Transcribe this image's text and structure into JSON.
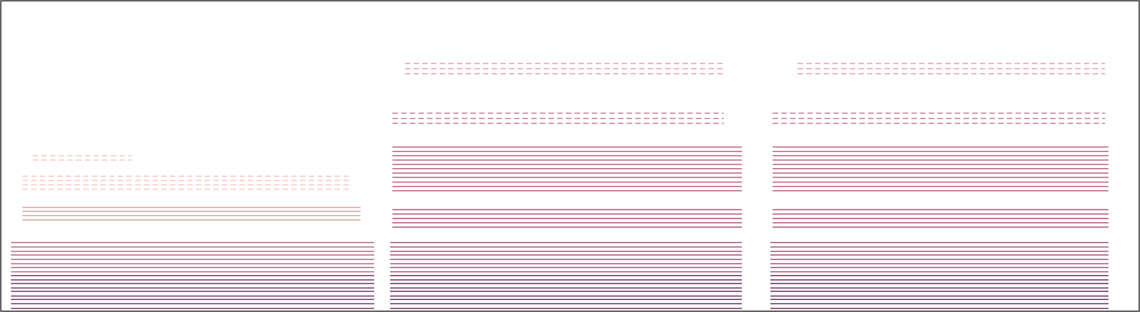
{
  "chart_data": {
    "type": "line",
    "xlim": [
      0,
      100
    ],
    "ylim": [
      0,
      100
    ],
    "tick_labels": false,
    "grid": false,
    "segments": [
      {
        "start": 0.9,
        "end": 32.8,
        "color": "#6b2a60",
        "line_style": "solid",
        "harmonics": [
          0.9,
          2.4,
          3.8,
          4.9,
          6.4,
          7.5,
          8.9,
          10.1,
          11.5
        ]
      },
      {
        "start": 0.9,
        "end": 32.8,
        "color": "#b0607e",
        "line_style": "solid",
        "harmonics": [
          12.7,
          14.1,
          15.3,
          16.7,
          18.1,
          19.3,
          20.7,
          22.1
        ]
      },
      {
        "start": 1.9,
        "end": 31.6,
        "color": "#dba092",
        "line_style": "solid",
        "harmonics": [
          29.4,
          30.8,
          32.2,
          33.4
        ]
      },
      {
        "start": 1.9,
        "end": 30.6,
        "color": "#efcabb",
        "line_style": "dashed",
        "harmonics": [
          39.3,
          40.7,
          42.1,
          43.5
        ]
      },
      {
        "start": 2.8,
        "end": 11.5,
        "color": "#efcabb",
        "line_style": "dashed",
        "harmonics": [
          48.7,
          50.1
        ]
      },
      {
        "start": 34.2,
        "end": 65.1,
        "color": "#5e2358",
        "line_style": "solid",
        "harmonics": [
          0.9,
          2.4,
          3.8,
          4.9,
          6.4,
          7.5,
          8.9,
          10.1,
          11.5
        ]
      },
      {
        "start": 34.2,
        "end": 65.1,
        "color": "#9c4a72",
        "line_style": "solid",
        "harmonics": [
          12.7,
          14.1,
          15.3,
          16.7,
          18.1,
          19.3,
          20.7,
          22.1
        ]
      },
      {
        "start": 34.4,
        "end": 65.1,
        "color": "#b04a6a",
        "line_style": "solid",
        "harmonics": [
          27.1,
          28.5,
          29.9,
          31.3,
          32.7
        ]
      },
      {
        "start": 34.4,
        "end": 65.1,
        "color": "#b65a78",
        "line_style": "solid",
        "harmonics": [
          38.8,
          40.2,
          41.6,
          43.1,
          44.5,
          45.9,
          47.3,
          48.7,
          50.1,
          51.5,
          52.9
        ]
      },
      {
        "start": 34.4,
        "end": 63.5,
        "color": "#c87890",
        "line_style": "dashed",
        "harmonics": [
          60.5,
          62.1,
          63.8
        ]
      },
      {
        "start": 35.5,
        "end": 63.5,
        "color": "#dca0a8",
        "line_style": "dashed",
        "harmonics": [
          76.5,
          78.1,
          79.8
        ]
      },
      {
        "start": 67.6,
        "end": 97.3,
        "color": "#5e2358",
        "line_style": "solid",
        "harmonics": [
          0.9,
          2.4,
          3.8,
          4.9,
          6.4,
          7.5,
          8.9,
          10.1,
          11.5
        ]
      },
      {
        "start": 67.6,
        "end": 97.3,
        "color": "#9c4a72",
        "line_style": "solid",
        "harmonics": [
          12.7,
          14.1,
          15.3,
          16.7,
          18.1,
          19.3,
          20.7,
          22.1
        ]
      },
      {
        "start": 67.8,
        "end": 97.3,
        "color": "#b04a6a",
        "line_style": "solid",
        "harmonics": [
          27.1,
          28.5,
          29.9,
          31.3,
          32.7
        ]
      },
      {
        "start": 67.8,
        "end": 97.3,
        "color": "#b65a78",
        "line_style": "solid",
        "harmonics": [
          38.8,
          40.2,
          41.6,
          43.1,
          44.5,
          45.9,
          47.3,
          48.7,
          50.1,
          51.5,
          52.9
        ]
      },
      {
        "start": 67.8,
        "end": 97.0,
        "color": "#c87890",
        "line_style": "dashed",
        "harmonics": [
          60.5,
          62.1,
          63.8
        ]
      },
      {
        "start": 70.0,
        "end": 97.0,
        "color": "#dca0a8",
        "line_style": "dashed",
        "harmonics": [
          76.5,
          78.1,
          79.8
        ]
      }
    ]
  }
}
